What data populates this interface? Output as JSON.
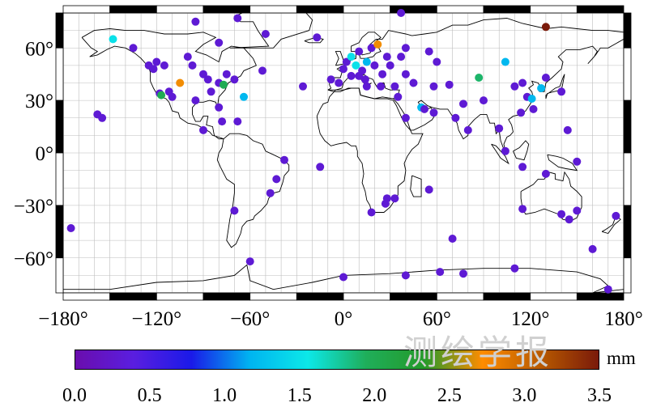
{
  "chart_data": {
    "type": "scatter",
    "title": "",
    "xlabel": "",
    "ylabel": "",
    "xlim": [
      -180,
      180
    ],
    "ylim": [
      -80,
      80
    ],
    "x_ticks": [
      "−180°",
      "−120°",
      "−60°",
      "0°",
      "60°",
      "120°",
      "180°"
    ],
    "y_ticks": [
      "60°",
      "30°",
      "0°",
      "−30°",
      "−60°"
    ],
    "colorbar": {
      "unit": "mm",
      "min": 0.0,
      "max": 3.5,
      "ticks": [
        "0.0",
        "0.5",
        "1.0",
        "1.5",
        "2.0",
        "2.5",
        "3.0",
        "3.5"
      ],
      "colors": [
        "#6a0dad",
        "#5a1ee0",
        "#1a1ae8",
        "#00b4f0",
        "#0ce8e8",
        "#1fae5a",
        "#249a2a",
        "#ff8c00",
        "#b85a00",
        "#7a1a0a"
      ]
    },
    "stations": [
      {
        "lon": -148,
        "lat": 65,
        "v": 1.5
      },
      {
        "lon": -135,
        "lat": 60,
        "v": 0.3
      },
      {
        "lon": -125,
        "lat": 50,
        "v": 0.3
      },
      {
        "lon": -122,
        "lat": 48,
        "v": 0.3
      },
      {
        "lon": -120,
        "lat": 52,
        "v": 0.3
      },
      {
        "lon": -115,
        "lat": 50,
        "v": 0.3
      },
      {
        "lon": -118,
        "lat": 34,
        "v": 0.3
      },
      {
        "lon": -117,
        "lat": 33,
        "v": 2.0
      },
      {
        "lon": -112,
        "lat": 35,
        "v": 0.3
      },
      {
        "lon": -105,
        "lat": 40,
        "v": 2.7
      },
      {
        "lon": -110,
        "lat": 32,
        "v": 0.3
      },
      {
        "lon": -100,
        "lat": 55,
        "v": 0.3
      },
      {
        "lon": -97,
        "lat": 50,
        "v": 0.3
      },
      {
        "lon": -95,
        "lat": 30,
        "v": 0.3
      },
      {
        "lon": -90,
        "lat": 45,
        "v": 0.3
      },
      {
        "lon": -87,
        "lat": 42,
        "v": 0.3
      },
      {
        "lon": -85,
        "lat": 35,
        "v": 0.3
      },
      {
        "lon": -80,
        "lat": 40,
        "v": 0.3
      },
      {
        "lon": -77,
        "lat": 39,
        "v": 2.0
      },
      {
        "lon": -75,
        "lat": 45,
        "v": 0.3
      },
      {
        "lon": -70,
        "lat": 42,
        "v": 0.3
      },
      {
        "lon": -64,
        "lat": 32,
        "v": 1.2
      },
      {
        "lon": -68,
        "lat": 18,
        "v": 0.3
      },
      {
        "lon": -80,
        "lat": 26,
        "v": 0.3
      },
      {
        "lon": -78,
        "lat": 18,
        "v": 0.3
      },
      {
        "lon": -90,
        "lat": 13,
        "v": 0.3
      },
      {
        "lon": -95,
        "lat": 75,
        "v": 0.3
      },
      {
        "lon": -80,
        "lat": 63,
        "v": 0.3
      },
      {
        "lon": -68,
        "lat": 77,
        "v": 0.3
      },
      {
        "lon": -50,
        "lat": 68,
        "v": 0.3
      },
      {
        "lon": -52,
        "lat": 47,
        "v": 0.3
      },
      {
        "lon": -17,
        "lat": 66,
        "v": 0.3
      },
      {
        "lon": -26,
        "lat": 38,
        "v": 0.3
      },
      {
        "lon": -158,
        "lat": 22,
        "v": 0.3
      },
      {
        "lon": -155,
        "lat": 20,
        "v": 0.3
      },
      {
        "lon": -175,
        "lat": -43,
        "v": 0.3
      },
      {
        "lon": -38,
        "lat": -4,
        "v": 0.3
      },
      {
        "lon": -43,
        "lat": -15,
        "v": 0.3
      },
      {
        "lon": -47,
        "lat": -23,
        "v": 0.3
      },
      {
        "lon": -70,
        "lat": -33,
        "v": 0.3
      },
      {
        "lon": -60,
        "lat": -62,
        "v": 0.3
      },
      {
        "lon": -15,
        "lat": -8,
        "v": 0.3
      },
      {
        "lon": 0,
        "lat": 48,
        "v": 0.3
      },
      {
        "lon": 2,
        "lat": 52,
        "v": 0.3
      },
      {
        "lon": 5,
        "lat": 55,
        "v": 1.5
      },
      {
        "lon": 8,
        "lat": 50,
        "v": 1.5
      },
      {
        "lon": 10,
        "lat": 58,
        "v": 0.3
      },
      {
        "lon": 12,
        "lat": 47,
        "v": 0.3
      },
      {
        "lon": 15,
        "lat": 52,
        "v": 1.2
      },
      {
        "lon": 18,
        "lat": 60,
        "v": 0.3
      },
      {
        "lon": 22,
        "lat": 62,
        "v": 2.7
      },
      {
        "lon": 20,
        "lat": 50,
        "v": 0.3
      },
      {
        "lon": 25,
        "lat": 45,
        "v": 0.3
      },
      {
        "lon": 28,
        "lat": 55,
        "v": 0.3
      },
      {
        "lon": 30,
        "lat": 50,
        "v": 0.3
      },
      {
        "lon": 24,
        "lat": 38,
        "v": 0.3
      },
      {
        "lon": 14,
        "lat": 42,
        "v": 0.3
      },
      {
        "lon": 10,
        "lat": 44,
        "v": 0.3
      },
      {
        "lon": 5,
        "lat": 44,
        "v": 0.3
      },
      {
        "lon": -3,
        "lat": 40,
        "v": 0.3
      },
      {
        "lon": -8,
        "lat": 42,
        "v": 0.3
      },
      {
        "lon": 15,
        "lat": 38,
        "v": 0.3
      },
      {
        "lon": 33,
        "lat": 38,
        "v": 0.3
      },
      {
        "lon": 35,
        "lat": 32,
        "v": 0.3
      },
      {
        "lon": 40,
        "lat": 45,
        "v": 0.3
      },
      {
        "lon": 45,
        "lat": 40,
        "v": 0.3
      },
      {
        "lon": 37,
        "lat": 55,
        "v": 0.3
      },
      {
        "lon": 40,
        "lat": 60,
        "v": 0.3
      },
      {
        "lon": 50,
        "lat": 26,
        "v": 1.2
      },
      {
        "lon": 52,
        "lat": 25,
        "v": 0.3
      },
      {
        "lon": 40,
        "lat": 20,
        "v": 0.3
      },
      {
        "lon": 58,
        "lat": 23,
        "v": 0.3
      },
      {
        "lon": 60,
        "lat": 52,
        "v": 0.3
      },
      {
        "lon": 55,
        "lat": 58,
        "v": 0.3
      },
      {
        "lon": 58,
        "lat": 38,
        "v": 0.3
      },
      {
        "lon": 68,
        "lat": 39,
        "v": 0.3
      },
      {
        "lon": 80,
        "lat": 13,
        "v": 0.3
      },
      {
        "lon": 77,
        "lat": 28,
        "v": 0.3
      },
      {
        "lon": 72,
        "lat": 20,
        "v": 0.3
      },
      {
        "lon": 87,
        "lat": 43,
        "v": 1.9
      },
      {
        "lon": 90,
        "lat": 30,
        "v": 0.3
      },
      {
        "lon": 104,
        "lat": 52,
        "v": 1.2
      },
      {
        "lon": 110,
        "lat": 38,
        "v": 0.3
      },
      {
        "lon": 115,
        "lat": 40,
        "v": 0.3
      },
      {
        "lon": 118,
        "lat": 32,
        "v": 0.3
      },
      {
        "lon": 121,
        "lat": 31,
        "v": 1.2
      },
      {
        "lon": 127,
        "lat": 37,
        "v": 1.2
      },
      {
        "lon": 122,
        "lat": 25,
        "v": 0.3
      },
      {
        "lon": 114,
        "lat": 23,
        "v": 0.3
      },
      {
        "lon": 100,
        "lat": 14,
        "v": 0.3
      },
      {
        "lon": 104,
        "lat": 1,
        "v": 0.3
      },
      {
        "lon": 130,
        "lat": 72,
        "v": 3.5
      },
      {
        "lon": 130,
        "lat": 43,
        "v": 0.3
      },
      {
        "lon": 140,
        "lat": 35,
        "v": 0.3
      },
      {
        "lon": 144,
        "lat": 13,
        "v": 0.3
      },
      {
        "lon": 115,
        "lat": -8,
        "v": 0.3
      },
      {
        "lon": 130,
        "lat": -12,
        "v": 0.3
      },
      {
        "lon": 150,
        "lat": -5,
        "v": 0.3
      },
      {
        "lon": 115,
        "lat": -32,
        "v": 0.3
      },
      {
        "lon": 140,
        "lat": -35,
        "v": 0.3
      },
      {
        "lon": 145,
        "lat": -38,
        "v": 0.3
      },
      {
        "lon": 150,
        "lat": -33,
        "v": 0.3
      },
      {
        "lon": 160,
        "lat": -55,
        "v": 0.3
      },
      {
        "lon": 175,
        "lat": -36,
        "v": 0.3
      },
      {
        "lon": 170,
        "lat": -78,
        "v": 0.3
      },
      {
        "lon": 18,
        "lat": -34,
        "v": 0.3
      },
      {
        "lon": 28,
        "lat": -26,
        "v": 0.3
      },
      {
        "lon": 33,
        "lat": -26,
        "v": 0.3
      },
      {
        "lon": 27,
        "lat": -29,
        "v": 0.3
      },
      {
        "lon": 55,
        "lat": -21,
        "v": 0.3
      },
      {
        "lon": 70,
        "lat": -49,
        "v": 0.3
      },
      {
        "lon": 40,
        "lat": -70,
        "v": 0.3
      },
      {
        "lon": 77,
        "lat": -69,
        "v": 0.3
      },
      {
        "lon": 62,
        "lat": -68,
        "v": 0.3
      },
      {
        "lon": 110,
        "lat": -66,
        "v": 0.3
      },
      {
        "lon": 0,
        "lat": -71,
        "v": 0.3
      },
      {
        "lon": 37,
        "lat": 80,
        "v": 0.3
      }
    ]
  },
  "watermark": "测绘学报"
}
